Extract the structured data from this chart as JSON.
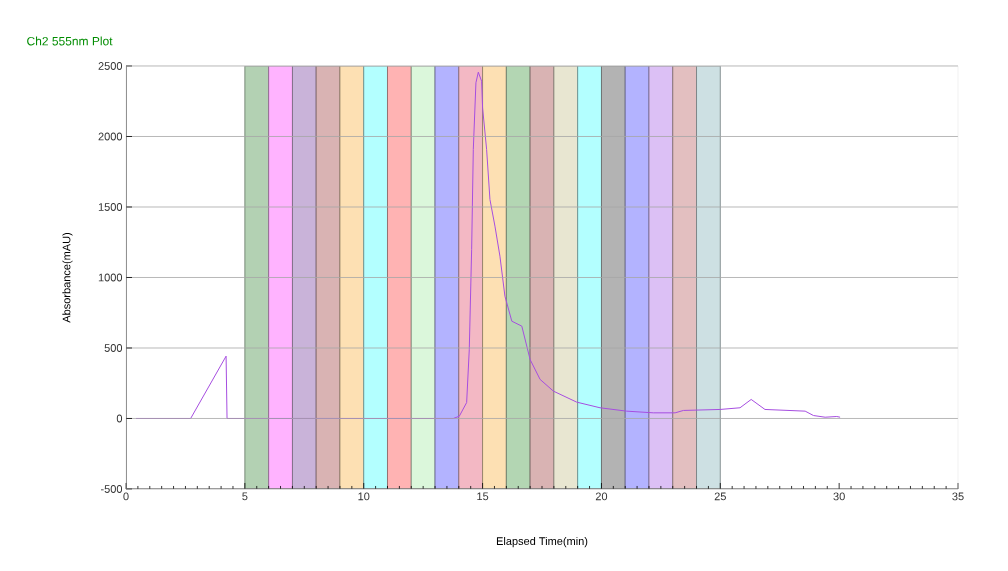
{
  "chart_data": {
    "type": "line",
    "title": "Ch2 555nm Plot",
    "xlabel": "Elapsed Time(min)",
    "ylabel": "Absorbance(mAU)",
    "xlim": [
      0,
      35
    ],
    "ylim": [
      -500,
      2500
    ],
    "xticks": [
      0,
      5,
      10,
      15,
      20,
      25,
      30,
      35
    ],
    "yticks": [
      -500,
      0,
      500,
      1000,
      1500,
      2000,
      2500
    ],
    "grid": "y",
    "series": [
      {
        "color": "#a64de0",
        "x": [
          0.42,
          2.72,
          4.21,
          4.25,
          13.77,
          14.02,
          14.33,
          14.44,
          14.54,
          14.61,
          14.72,
          14.82,
          14.96,
          15.0,
          15.17,
          15.31,
          15.52,
          15.73,
          15.94,
          16.23,
          16.65,
          17.0,
          17.42,
          17.98,
          18.96,
          19.94,
          21.06,
          22.18,
          23.1,
          23.45,
          24.99,
          25.83,
          26.3,
          26.88,
          28.57,
          28.92,
          29.41,
          29.9,
          30.04
        ],
        "values": [
          0,
          0,
          442,
          0,
          0,
          16,
          113,
          489,
          1199,
          1908,
          2381,
          2456,
          2392,
          2203,
          1908,
          1553,
          1364,
          1151,
          867,
          690,
          655,
          418,
          277,
          194,
          116,
          76,
          52,
          40,
          40,
          57,
          64,
          76,
          135,
          64,
          52,
          21,
          9,
          14,
          9
        ]
      }
    ],
    "bands": [
      {
        "axis": "x",
        "from": 5,
        "to": 6,
        "color": "#b3d1b3"
      },
      {
        "axis": "x",
        "from": 6,
        "to": 7,
        "color": "#ffb3ff"
      },
      {
        "axis": "x",
        "from": 7,
        "to": 8,
        "color": "#c9b3d9"
      },
      {
        "axis": "x",
        "from": 8,
        "to": 9,
        "color": "#d9b3b3"
      },
      {
        "axis": "x",
        "from": 9,
        "to": 10,
        "color": "#fde0b3"
      },
      {
        "axis": "x",
        "from": 10,
        "to": 11,
        "color": "#b3ffff"
      },
      {
        "axis": "x",
        "from": 11,
        "to": 12,
        "color": "#ffb3b3"
      },
      {
        "axis": "x",
        "from": 12,
        "to": 13,
        "color": "#dbf7db"
      },
      {
        "axis": "x",
        "from": 13,
        "to": 14,
        "color": "#b3b3ff"
      },
      {
        "axis": "x",
        "from": 14,
        "to": 15,
        "color": "#f3b8c4"
      },
      {
        "axis": "x",
        "from": 15,
        "to": 16,
        "color": "#fde0b3"
      },
      {
        "axis": "x",
        "from": 16,
        "to": 17,
        "color": "#b3d6b3"
      },
      {
        "axis": "x",
        "from": 17,
        "to": 18,
        "color": "#d9b3b3"
      },
      {
        "axis": "x",
        "from": 18,
        "to": 19,
        "color": "#e8e6d1"
      },
      {
        "axis": "x",
        "from": 19,
        "to": 20,
        "color": "#b3ffff"
      },
      {
        "axis": "x",
        "from": 20,
        "to": 21,
        "color": "#b3b3b3"
      },
      {
        "axis": "x",
        "from": 21,
        "to": 22,
        "color": "#b3b3ff"
      },
      {
        "axis": "x",
        "from": 22,
        "to": 23,
        "color": "#dcc0f5"
      },
      {
        "axis": "x",
        "from": 23,
        "to": 24,
        "color": "#e3bfc0"
      },
      {
        "axis": "x",
        "from": 24,
        "to": 25,
        "color": "#cde0e3"
      }
    ]
  }
}
